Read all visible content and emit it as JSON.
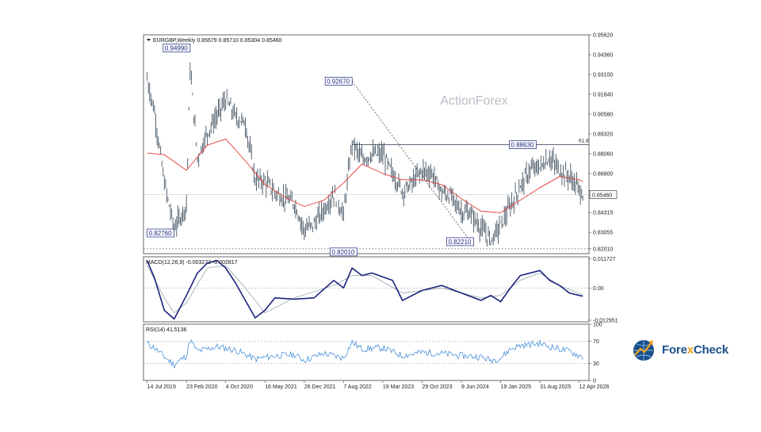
{
  "chart_data": [
    {
      "type": "bar",
      "panel": "price",
      "header": "EURGBP,Weekly  0.85679 0.85710 0.85304 0.85460",
      "watermark": "ActionForex",
      "y_ticks": [
        "0.95620",
        "0.94360",
        "0.93100",
        "0.91840",
        "0.90580",
        "0.89320",
        "0.88060",
        "0.86800",
        "0.85460",
        "0.84315",
        "0.83055",
        "0.82010"
      ],
      "ylim": [
        0.817,
        0.9562
      ],
      "last_price": 0.8546,
      "last_price_label": "0.85460",
      "fib_label": "61.8",
      "fib_level": 0.8863,
      "support_level": 0.8201,
      "annotations": [
        {
          "label": "0.94990",
          "value": 0.9499,
          "x": "2020-03-15"
        },
        {
          "label": "0.82760",
          "value": 0.8276,
          "x": "2019-07-14"
        },
        {
          "label": "0.92670",
          "value": 0.9267,
          "x": "2022-09-25"
        },
        {
          "label": "0.82010",
          "value": 0.8201,
          "x": "2022-08-21"
        },
        {
          "label": "0.82210",
          "value": 0.8221,
          "x": "2024-08-18"
        },
        {
          "label": "0.88630",
          "value": 0.8863,
          "x": "2025-08-10"
        }
      ],
      "series": [
        {
          "name": "Close",
          "color": "#3a4a5a",
          "x": [
            "2019-07-14",
            "2019-08-25",
            "2019-10-20",
            "2019-12-15",
            "2020-02-23",
            "2020-03-15",
            "2020-04-26",
            "2020-06-21",
            "2020-08-16",
            "2020-10-04",
            "2020-11-29",
            "2021-01-24",
            "2021-03-21",
            "2021-05-16",
            "2021-07-11",
            "2021-09-05",
            "2021-10-31",
            "2021-12-26",
            "2022-02-20",
            "2022-04-17",
            "2022-06-12",
            "2022-08-07",
            "2022-09-25",
            "2022-11-20",
            "2023-01-15",
            "2023-03-19",
            "2023-05-14",
            "2023-07-09",
            "2023-09-03",
            "2023-10-29",
            "2023-12-24",
            "2024-02-18",
            "2024-04-14",
            "2024-06-09",
            "2024-08-04",
            "2024-09-29",
            "2024-11-24",
            "2025-01-19",
            "2025-03-16",
            "2025-05-11",
            "2025-07-06",
            "2025-08-31",
            "2025-10-26",
            "2025-12-21",
            "2026-02-15",
            "2026-04-12",
            "2026-05-03"
          ],
          "values": [
            0.928,
            0.907,
            0.862,
            0.833,
            0.848,
            0.935,
            0.878,
            0.894,
            0.905,
            0.915,
            0.904,
            0.9,
            0.864,
            0.863,
            0.856,
            0.852,
            0.849,
            0.832,
            0.836,
            0.845,
            0.855,
            0.842,
            0.888,
            0.877,
            0.88,
            0.88,
            0.868,
            0.857,
            0.862,
            0.87,
            0.868,
            0.856,
            0.853,
            0.844,
            0.842,
            0.833,
            0.826,
            0.835,
            0.847,
            0.86,
            0.87,
            0.872,
            0.878,
            0.87,
            0.866,
            0.858,
            0.8546
          ]
        },
        {
          "name": "SMA",
          "color": "#e53935",
          "x": [
            "2019-07-14",
            "2019-10-20",
            "2020-02-23",
            "2020-06-21",
            "2020-10-04",
            "2021-01-24",
            "2021-05-16",
            "2021-09-05",
            "2021-12-26",
            "2022-04-17",
            "2022-08-07",
            "2022-11-20",
            "2023-03-19",
            "2023-07-09",
            "2023-10-29",
            "2024-02-18",
            "2024-06-09",
            "2024-09-29",
            "2025-01-19",
            "2025-05-11",
            "2025-08-31",
            "2025-12-21",
            "2026-04-12",
            "2026-05-03"
          ],
          "values": [
            0.881,
            0.88,
            0.87,
            0.886,
            0.89,
            0.876,
            0.861,
            0.853,
            0.847,
            0.851,
            0.862,
            0.874,
            0.868,
            0.864,
            0.864,
            0.861,
            0.852,
            0.844,
            0.843,
            0.851,
            0.859,
            0.866,
            0.864,
            0.863
          ]
        }
      ],
      "trendline": {
        "from_x": "2022-09-25",
        "from_value": 0.9267,
        "to_x": "2024-08-18",
        "to_value": 0.8221
      }
    },
    {
      "type": "line",
      "panel": "macd",
      "header": "MACD(12,26,9) -0.003272 -0.002817",
      "y_ticks": [
        "0.011727",
        "0.00",
        "-0.012951"
      ],
      "ylim": [
        -0.0136,
        0.0125
      ],
      "series": [
        {
          "name": "MACD",
          "color": "#1a237e",
          "x": [
            "2019-07-14",
            "2019-08-25",
            "2019-10-20",
            "2019-12-15",
            "2020-02-23",
            "2020-04-26",
            "2020-06-21",
            "2020-08-16",
            "2020-10-04",
            "2020-11-29",
            "2021-01-24",
            "2021-03-21",
            "2021-05-16",
            "2021-07-11",
            "2021-10-31",
            "2022-02-20",
            "2022-06-12",
            "2022-08-07",
            "2022-09-25",
            "2022-11-20",
            "2023-01-15",
            "2023-05-14",
            "2023-07-09",
            "2023-10-29",
            "2024-02-18",
            "2024-06-09",
            "2024-09-29",
            "2024-11-24",
            "2025-01-19",
            "2025-03-16",
            "2025-05-11",
            "2025-08-31",
            "2025-10-26",
            "2025-12-21",
            "2026-02-15",
            "2026-04-12",
            "2026-05-03"
          ],
          "values": [
            0.011,
            0.004,
            -0.009,
            -0.0125,
            -0.003,
            0.006,
            0.01,
            0.011,
            0.008,
            0.002,
            -0.005,
            -0.012,
            -0.009,
            -0.004,
            -0.0045,
            -0.004,
            0.003,
            0.0,
            0.008,
            0.005,
            0.006,
            0.003,
            -0.005,
            -0.001,
            0.001,
            -0.002,
            -0.005,
            -0.003,
            -0.0055,
            0.0,
            0.005,
            0.007,
            0.003,
            0.001,
            -0.002,
            -0.003,
            -0.0033
          ]
        },
        {
          "name": "Signal",
          "color": "#9aa5ad",
          "x": [
            "2019-07-14",
            "2019-10-20",
            "2019-12-15",
            "2020-02-23",
            "2020-06-21",
            "2020-10-04",
            "2021-01-24",
            "2021-05-16",
            "2021-10-31",
            "2022-06-12",
            "2022-09-25",
            "2023-01-15",
            "2023-07-09",
            "2024-02-18",
            "2024-09-29",
            "2025-01-19",
            "2025-05-11",
            "2025-08-31",
            "2025-12-21",
            "2026-05-03"
          ],
          "values": [
            0.009,
            -0.004,
            -0.01,
            -0.006,
            0.008,
            0.009,
            0.0,
            -0.01,
            -0.004,
            0.001,
            0.005,
            0.005,
            -0.002,
            0.0,
            -0.004,
            -0.003,
            0.003,
            0.006,
            0.001,
            -0.0028
          ]
        }
      ]
    },
    {
      "type": "line",
      "panel": "rsi",
      "header": "RSI(14) 41.5136",
      "y_ticks": [
        "100",
        "70",
        "30",
        "0"
      ],
      "ylim": [
        0,
        100
      ],
      "series": [
        {
          "name": "RSI",
          "color": "#4a90d9",
          "x": [
            "2019-07-14",
            "2019-08-25",
            "2019-10-20",
            "2019-12-15",
            "2020-02-23",
            "2020-03-15",
            "2020-04-26",
            "2020-08-16",
            "2020-11-29",
            "2021-03-21",
            "2021-07-11",
            "2021-10-31",
            "2021-12-26",
            "2022-04-17",
            "2022-08-07",
            "2022-09-25",
            "2022-11-20",
            "2023-03-19",
            "2023-07-09",
            "2023-10-29",
            "2024-02-18",
            "2024-06-09",
            "2024-09-29",
            "2024-11-24",
            "2025-01-19",
            "2025-03-16",
            "2025-05-11",
            "2025-08-31",
            "2025-10-26",
            "2025-12-21",
            "2026-02-15",
            "2026-04-12",
            "2026-05-03"
          ],
          "values": [
            66,
            58,
            42,
            28,
            44,
            72,
            52,
            60,
            54,
            38,
            44,
            46,
            36,
            48,
            40,
            68,
            56,
            58,
            44,
            50,
            48,
            44,
            42,
            36,
            40,
            56,
            62,
            66,
            60,
            56,
            52,
            44,
            41.5
          ]
        }
      ]
    }
  ],
  "x_ticks": [
    {
      "label": "14 Jul 2019",
      "x": "2019-07-14"
    },
    {
      "label": "23 Feb 2020",
      "x": "2020-02-23"
    },
    {
      "label": "4 Oct 2020",
      "x": "2020-10-04"
    },
    {
      "label": "16 May 2021",
      "x": "2021-05-16"
    },
    {
      "label": "26 Dec 2021",
      "x": "2021-12-26"
    },
    {
      "label": "7 Aug 2022",
      "x": "2022-08-07"
    },
    {
      "label": "19 Mar 2023",
      "x": "2023-03-19"
    },
    {
      "label": "29 Oct 2023",
      "x": "2023-10-29"
    },
    {
      "label": "9 Jun 2024",
      "x": "2024-06-09"
    },
    {
      "label": "19 Jan 2025",
      "x": "2025-01-19"
    },
    {
      "label": "31 Aug 2025",
      "x": "2025-08-31"
    },
    {
      "label": "12 Apr 2026",
      "x": "2026-04-12"
    }
  ],
  "brand": {
    "name_part1": "Fore",
    "name_x": "x",
    "name_part2": "Check",
    "icon": "globe-chart-icon",
    "accent": "#f0a020",
    "primary": "#1b4f8a"
  }
}
